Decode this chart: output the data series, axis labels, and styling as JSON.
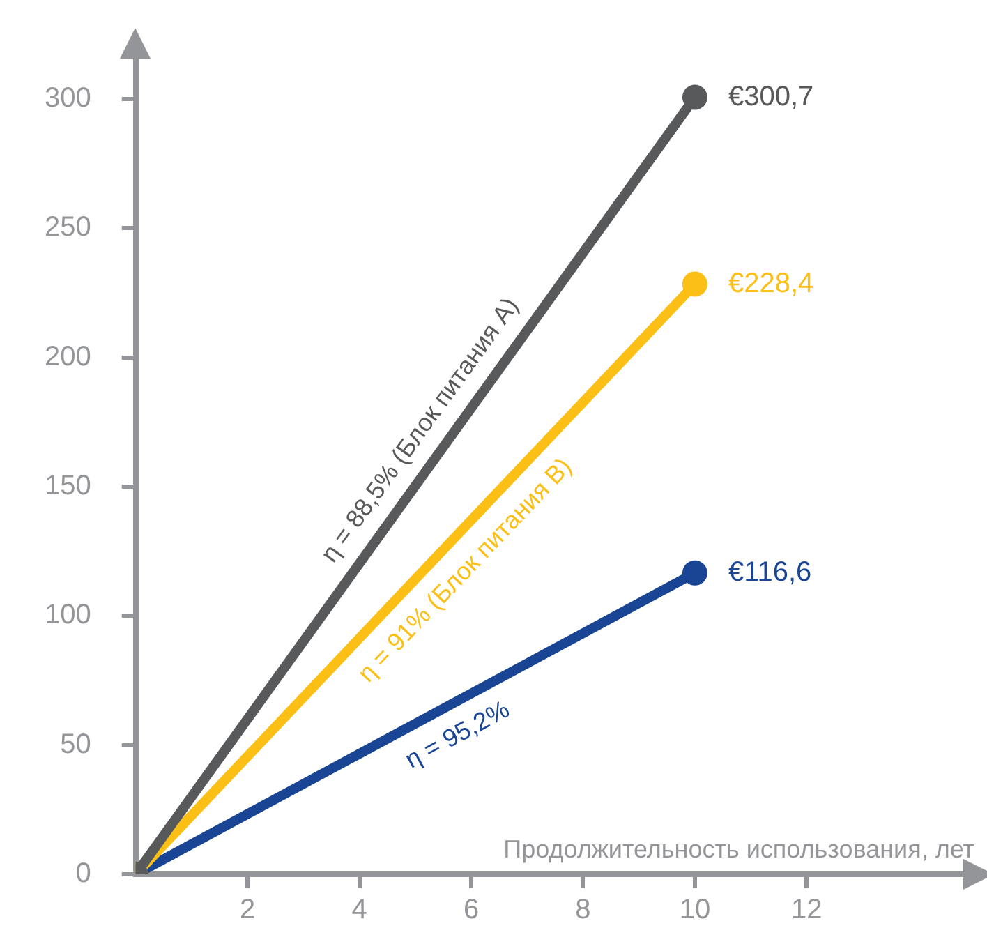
{
  "chart_data": {
    "type": "line",
    "xlabel": "Продолжительность использования, лет",
    "x": [
      0,
      10
    ],
    "series": [
      {
        "name": "η = 88,5% (Блок питания A)",
        "color": "#58595b",
        "values": [
          0,
          300.7
        ],
        "value_labels": [
          null,
          "€300,7"
        ]
      },
      {
        "name": "η = 91% (Блок питания B)",
        "color": "#fbbf16",
        "values": [
          0,
          228.4
        ],
        "value_labels": [
          null,
          "€228,4"
        ]
      },
      {
        "name": "η = 95,2%",
        "color": "#1a4594",
        "values": [
          0,
          116.6
        ],
        "value_labels": [
          null,
          "€116,6"
        ]
      }
    ],
    "xlim": [
      0,
      15
    ],
    "xticks": [
      2,
      4,
      6,
      8,
      10,
      12
    ],
    "ylim": [
      0,
      320
    ],
    "yticks": [
      0,
      50,
      100,
      150,
      200,
      250,
      300
    ],
    "grid": false,
    "legend": false,
    "marker": "circle",
    "line_style": "solid"
  }
}
